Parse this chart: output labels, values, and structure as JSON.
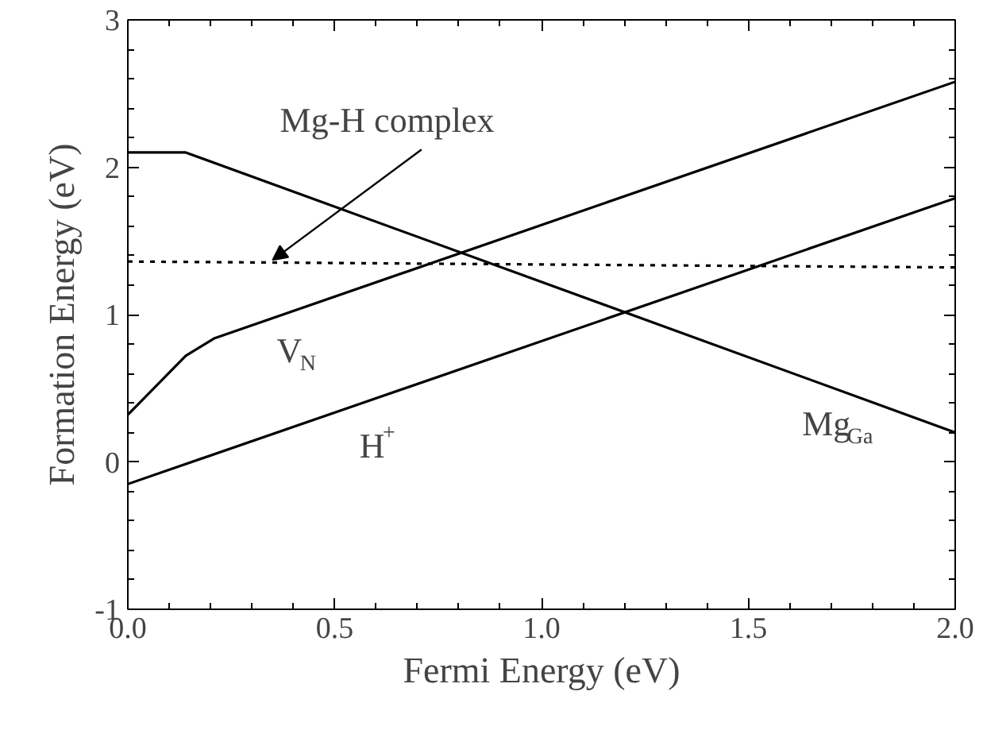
{
  "chart_data": {
    "type": "line",
    "xlabel": "Fermi Energy (eV)",
    "ylabel": "Formation Energy (eV)",
    "series": [
      {
        "color": "#000000",
        "x": [
          0.0,
          0.14,
          2.0
        ],
        "values": [
          2.1,
          2.1,
          0.2
        ]
      },
      {
        "color": "#000000",
        "x": [
          0.0,
          0.14,
          0.21,
          2.0
        ],
        "values": [
          0.32,
          0.72,
          0.84,
          2.58
        ]
      },
      {
        "color": "#000000",
        "x": [
          0.0,
          2.0
        ],
        "values": [
          -0.15,
          1.79
        ]
      },
      {
        "color": "#000000",
        "x": [
          0.0,
          2.0
        ],
        "values": [
          1.36,
          1.32
        ],
        "line_style": "dotted"
      }
    ],
    "annotations": [
      {
        "text": "Mg-H complex",
        "x": 0.35,
        "y": 1.37
      },
      "V$_{N}$",
      "H$^{+}$",
      "Mg$_{Ga}$"
    ],
    "xlim": [
      0.0,
      2.0
    ],
    "ylim": [
      -1,
      3
    ],
    "xticks": [
      {
        "value": 0.0,
        "label": "0.0"
      },
      {
        "value": 0.5,
        "label": "0.5"
      },
      {
        "value": 1.0,
        "label": "1.0"
      },
      {
        "value": 1.5,
        "label": "1.5"
      },
      {
        "value": 2.0,
        "label": "2.0"
      }
    ],
    "yticks": [
      -1,
      0,
      1,
      2,
      3
    ],
    "grid": false,
    "marker": "none",
    "line_style": "solid"
  }
}
